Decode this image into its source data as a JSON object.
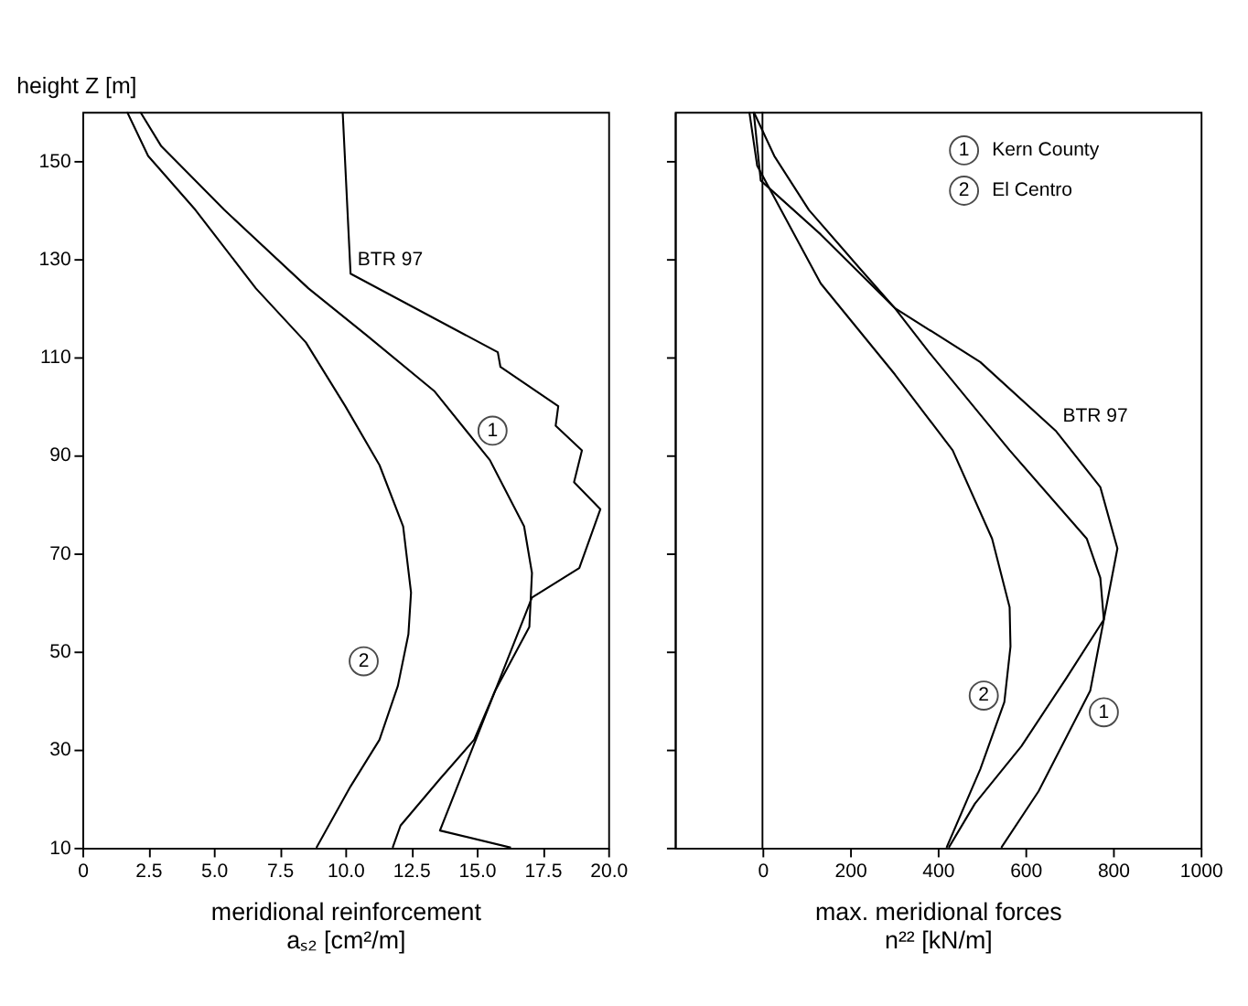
{
  "chart_data": [
    {
      "type": "line",
      "ylabel": "height Z [m]",
      "xlabel": "meridional reinforcement\naₛ₂ [cm²/m]",
      "xlim": [
        0,
        20
      ],
      "xticks": [
        0,
        {
          "value": 2.5,
          "label": "2.5"
        },
        {
          "value": 5,
          "label": "5.0"
        },
        {
          "value": 7.5,
          "label": "7.5"
        },
        {
          "value": 10,
          "label": "10.0"
        },
        {
          "value": 12.5,
          "label": "12.5"
        },
        {
          "value": 15,
          "label": "15.0"
        },
        {
          "value": 17.5,
          "label": "17.5"
        },
        {
          "value": 20,
          "label": "20.0"
        }
      ],
      "ylim": [
        10,
        160
      ],
      "yticks": [
        10,
        30,
        50,
        70,
        90,
        110,
        130,
        150
      ],
      "grid": false,
      "legend": false,
      "line_style": "solid",
      "series": [
        {
          "color": "#000000",
          "x": [
            2.2,
            3.0,
            5.4,
            8.6,
            10.8,
            13.4,
            15.5,
            16.8,
            17.1,
            17.0,
            15.7,
            14.9,
            13.6,
            12.1,
            11.8
          ],
          "values": [
            160,
            153,
            140,
            124,
            114.5,
            103,
            89,
            75.5,
            66,
            55,
            42,
            32,
            24,
            14.5,
            10
          ]
        },
        {
          "color": "#000000",
          "x": [
            1.7,
            2.5,
            4.3,
            6.6,
            8.5,
            10.0,
            11.3,
            12.2,
            12.5,
            12.4,
            12.0,
            11.3,
            10.2,
            8.9
          ],
          "values": [
            160,
            151,
            140,
            124,
            113,
            100,
            88,
            75.5,
            62,
            53.5,
            43,
            32,
            22.5,
            10
          ]
        },
        {
          "color": "#000000",
          "x": [
            9.9,
            10.2,
            15.8,
            15.9,
            18.1,
            18.0,
            19.0,
            18.7,
            19.7,
            18.9,
            17.1,
            13.6,
            16.3
          ],
          "values": [
            160,
            127,
            111,
            108,
            100,
            96,
            91,
            84.5,
            79,
            67,
            61,
            13.5,
            10
          ]
        }
      ],
      "annotations": [
        {
          "text": "BTR 97",
          "x": 10.2,
          "y": 127
        },
        {
          "text": "1",
          "x": 15.6,
          "y": 95
        },
        {
          "text": "2",
          "x": 10.7,
          "y": 48
        }
      ]
    },
    {
      "type": "line",
      "xlabel": "max. meridional forces\nn²² [kN/m]",
      "xlim": [
        -200,
        1000
      ],
      "xticks": [
        0,
        200,
        400,
        600,
        800,
        {
          "value": 1000,
          "label": "1000"
        }
      ],
      "ylim": [
        10,
        160
      ],
      "yticks": [
        10,
        30,
        50,
        70,
        90,
        110,
        130,
        150
      ],
      "tick_labels": "x",
      "grid": false,
      "legend": "top right",
      "line_style": "solid",
      "ref_lines": [
        {
          "axis": "x",
          "value": 0,
          "color": "#000000"
        }
      ],
      "series": [
        {
          "name": "Kern County",
          "color": "#000000",
          "x": [
            -20,
            27,
            106,
            223,
            302,
            380,
            564,
            740,
            771,
            779,
            748,
            630,
            545
          ],
          "values": [
            160,
            151,
            140,
            128,
            120,
            111,
            91,
            73,
            65,
            56.5,
            42,
            21.5,
            10
          ]
        },
        {
          "name": "El Centro",
          "color": "#000000",
          "x": [
            -30,
            -12,
            133,
            302,
            434,
            524,
            564,
            566,
            552,
            497,
            420
          ],
          "values": [
            160,
            149,
            125,
            106.5,
            91,
            73,
            59,
            51,
            39.7,
            26,
            10
          ]
        },
        {
          "color": "#000000",
          "x": [
            -20,
            -4,
            133,
            302,
            497,
            669,
            771,
            810,
            779,
            693,
            591,
            485,
            425
          ],
          "values": [
            160,
            146,
            135,
            120,
            109,
            95,
            83.5,
            71,
            56.5,
            44.5,
            30.7,
            19,
            10
          ]
        }
      ],
      "annotations": [
        "1",
        "2",
        {
          "text": "BTR 97",
          "x": 669,
          "y": 95
        },
        {
          "text": "2",
          "x": 505,
          "y": 41
        },
        {
          "text": "1",
          "x": 779,
          "y": 37.6
        }
      ]
    }
  ]
}
